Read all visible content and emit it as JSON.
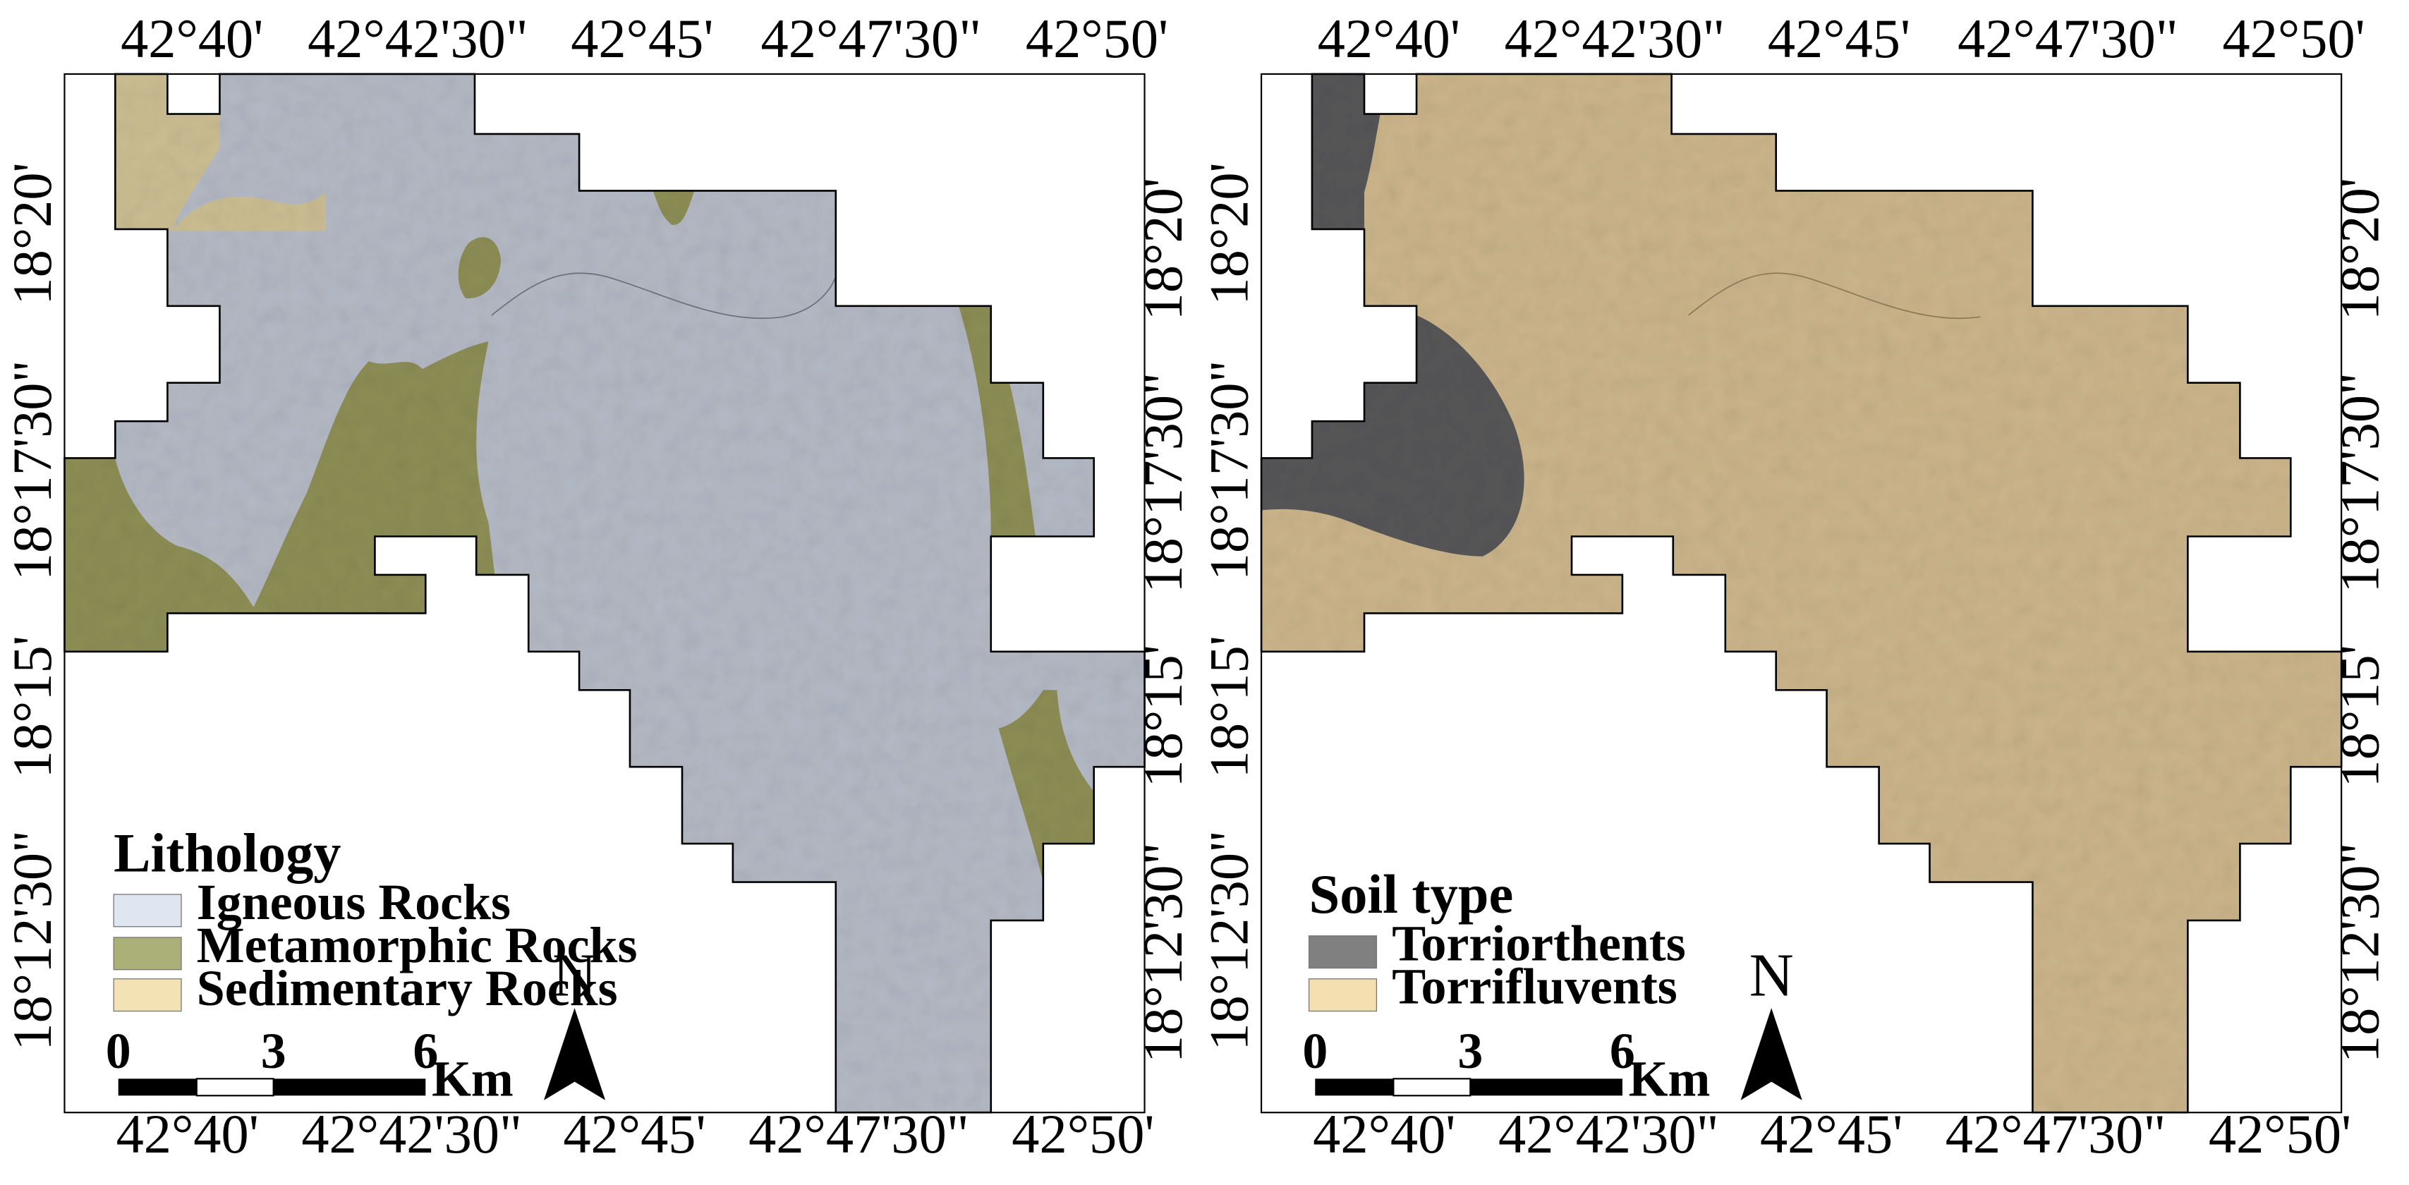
{
  "maps": [
    {
      "id": "lithology",
      "top_ticks": [
        "42°40'",
        "42°42'30\"",
        "42°45'",
        "42°47'30\"",
        "42°50'"
      ],
      "bottom_ticks": [
        "42°40'",
        "42°42'30\"",
        "42°45'",
        "42°47'30\"",
        "42°50'"
      ],
      "left_ticks": [
        "18°20'",
        "18°17'30\"",
        "18°15'",
        "18°12'30\""
      ],
      "right_ticks": [
        "18°20'",
        "18°17'30\"",
        "18°15'",
        "18°12'30\""
      ],
      "legend_title": "Lithology",
      "legend": [
        {
          "label": "Igneous Rocks",
          "color": "#dfe6f1"
        },
        {
          "label": "Metamorphic Rocks",
          "color": "#aab077"
        },
        {
          "label": "Sedimentary Rocks",
          "color": "#f3e2b3"
        }
      ],
      "base_color": "#b3b9c4",
      "scale": {
        "labels": [
          "0",
          "3",
          "6"
        ],
        "unit": "Km"
      },
      "north": "N"
    },
    {
      "id": "soil",
      "top_ticks": [
        "42°40'",
        "42°42'30\"",
        "42°45'",
        "42°47'30\"",
        "42°50'"
      ],
      "bottom_ticks": [
        "42°40'",
        "42°42'30\"",
        "42°45'",
        "42°47'30\"",
        "42°50'"
      ],
      "left_ticks": [
        "18°20'",
        "18°17'30\"",
        "18°15'",
        "18°12'30\""
      ],
      "right_ticks": [
        "18°20'",
        "18°17'30\"",
        "18°15'",
        "18°12'30\""
      ],
      "legend_title": "Soil type",
      "legend": [
        {
          "label": "Torriorthents",
          "color": "#808080"
        },
        {
          "label": "Torrifluvents",
          "color": "#f3dfb0"
        }
      ],
      "base_color": "#cbb48a",
      "scale": {
        "labels": [
          "0",
          "3",
          "6"
        ],
        "unit": "Km"
      },
      "north": "N"
    }
  ]
}
